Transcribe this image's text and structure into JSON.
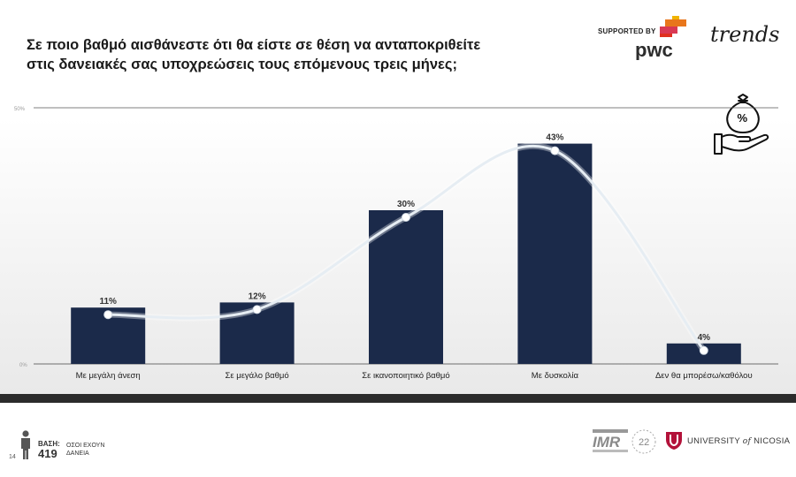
{
  "title": {
    "line1": "Σε ποιο βαθμό αισθάνεστε ότι θα είστε σε θέση να ανταποκριθείτε",
    "line2": "στις δανειακές σας υποχρεώσεις τους επόμενους τρεις μήνες;"
  },
  "logos": {
    "supported_by": "SUPPORTED BY",
    "pwc": "pwc",
    "trends": "trends",
    "imr": "IMR",
    "imr_years": "22",
    "university_prefix": "UNIVERSITY",
    "university_of": "of",
    "university_name": "NICOSIA"
  },
  "icons": {
    "money_hand": "money-bag-percent-hand-icon",
    "person": "person-icon"
  },
  "footer": {
    "base_label": "ΒΑΣΗ:",
    "base_value": "419",
    "base_desc_line1": "ΟΣΟΙ ΕΧΟΥΝ",
    "base_desc_line2": "ΔΑΝΕΙΑ",
    "page_number": "14"
  },
  "colors": {
    "bar": "#1b2a4a",
    "line": "#e6edf3",
    "label": "#333333"
  },
  "chart_data": {
    "type": "bar",
    "categories": [
      "Με μεγάλη άνεση",
      "Σε μεγάλο βαθμό",
      "Σε ικανοποιητικό βαθμό",
      "Με δυσκολία",
      "Δεν θα μπορέσω/καθόλου"
    ],
    "values": [
      11,
      12,
      30,
      43,
      4
    ],
    "data_labels": [
      "11%",
      "12%",
      "30%",
      "43%",
      "4%"
    ],
    "ylim": [
      0,
      50
    ],
    "ytick_top_label": "50%",
    "ytick_bottom_label": "0%",
    "overlay_line": true,
    "grid": false,
    "title": "",
    "xlabel": "",
    "ylabel": ""
  }
}
